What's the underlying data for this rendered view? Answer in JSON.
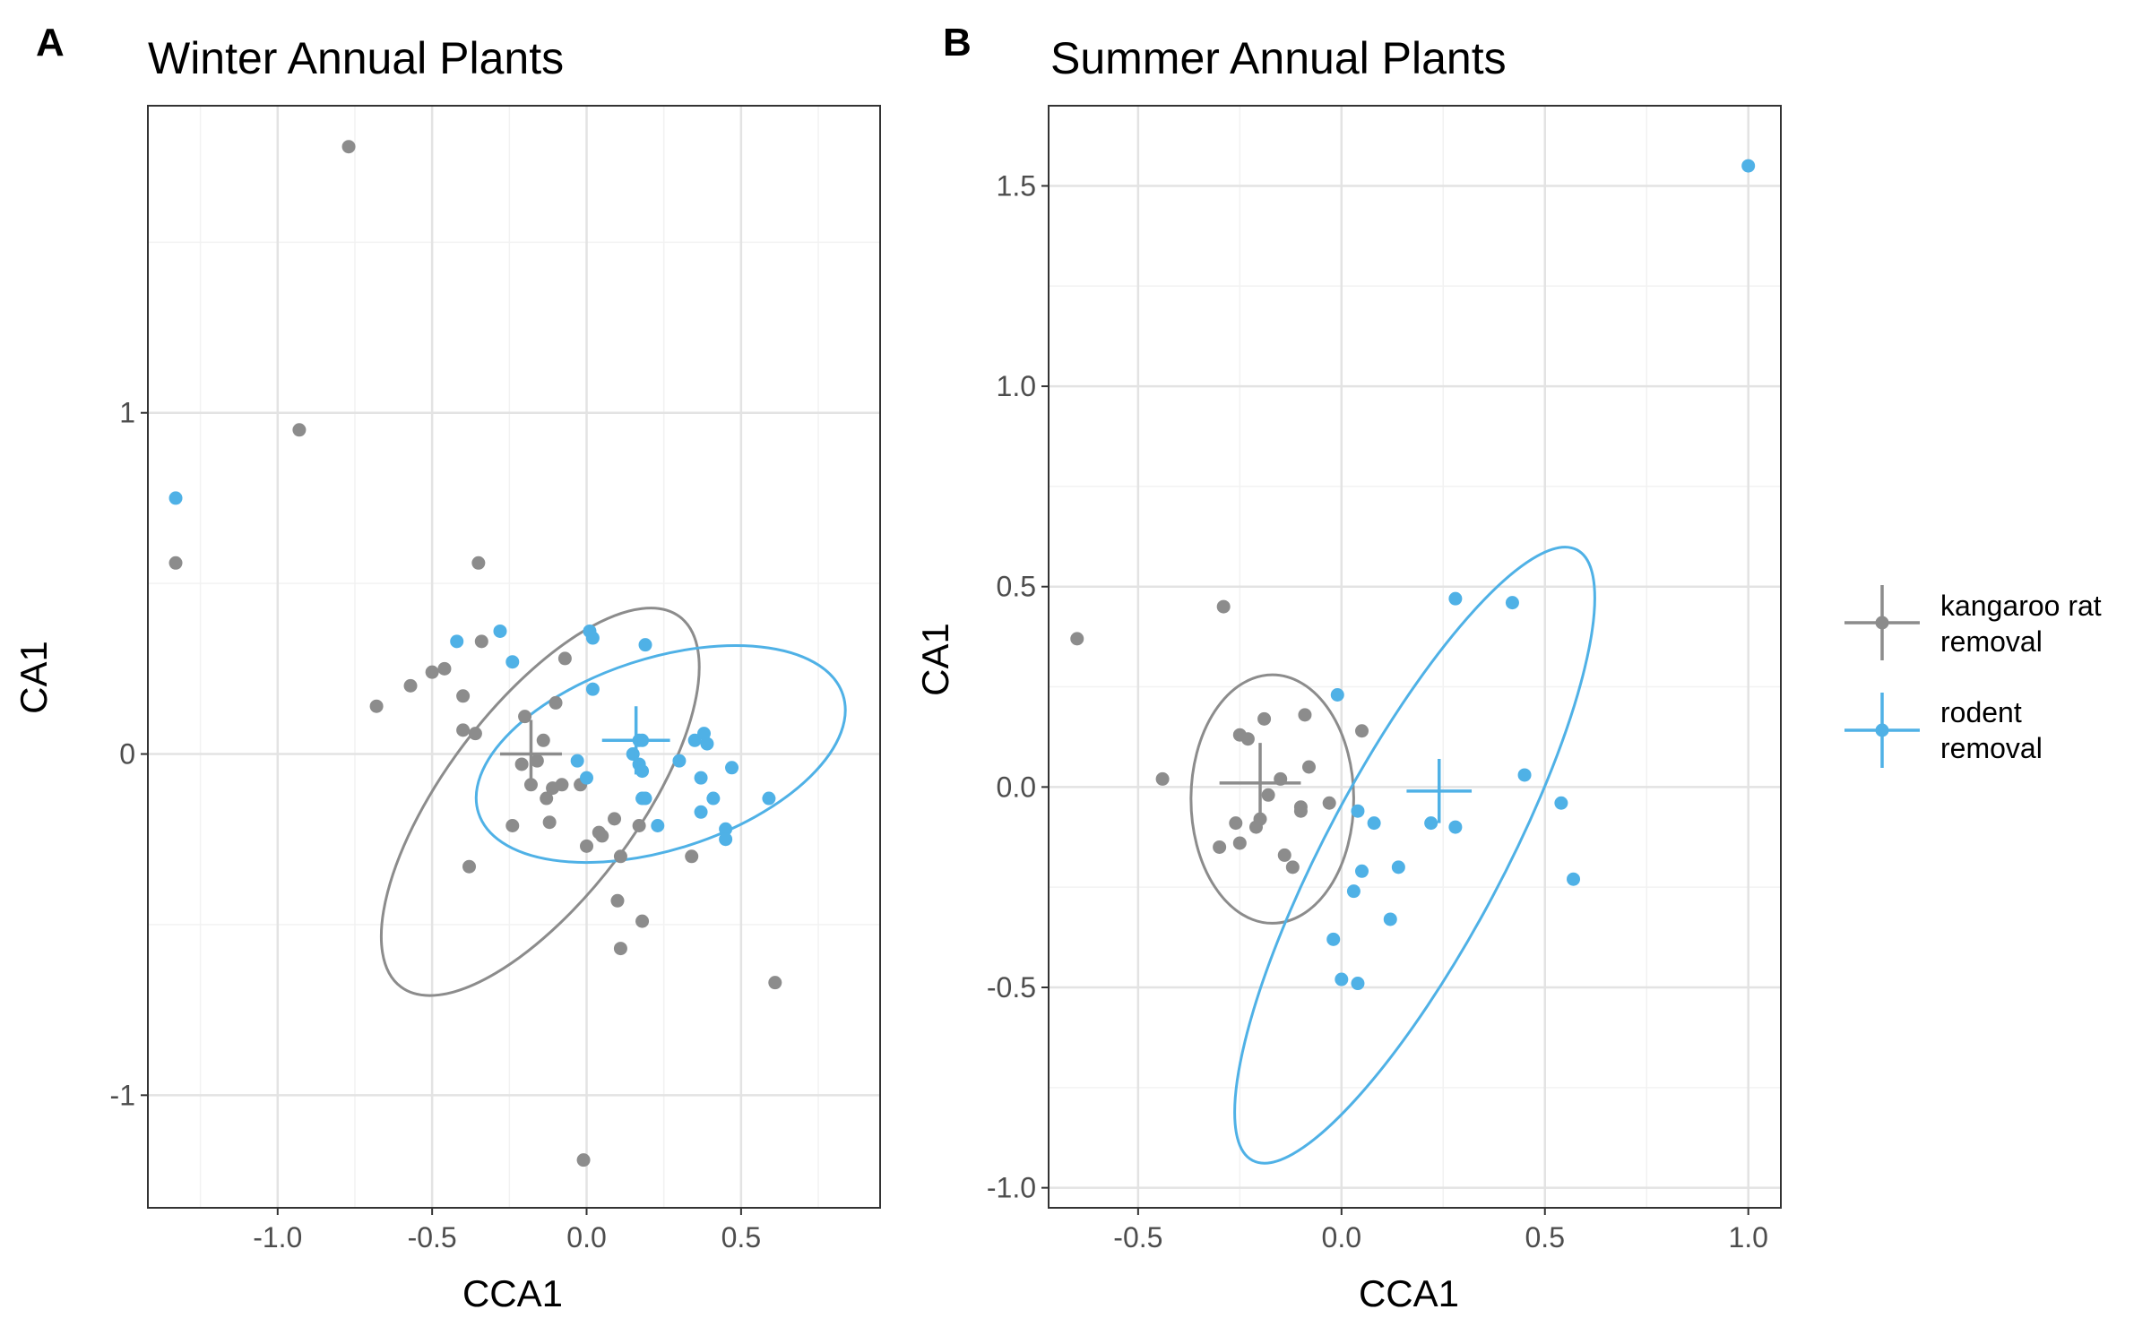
{
  "colors": {
    "kangaroo": "#8c8c8c",
    "rodent": "#4fb1e6",
    "grid_major": "#e3e3e3",
    "grid_minor": "#f2f2f2",
    "panel_border": "#333333",
    "tick_text": "#4d4d4d"
  },
  "legend": {
    "position": "right",
    "items": [
      {
        "key": "kangaroo",
        "lines": [
          "kangaroo rat",
          "removal"
        ]
      },
      {
        "key": "rodent",
        "lines": [
          "rodent",
          "removal"
        ]
      }
    ]
  },
  "chart_data": [
    {
      "type": "scatter",
      "panel_label": "A",
      "title": "Winter Annual Plants",
      "xlabel": "CCA1",
      "ylabel": "CA1",
      "xlim": [
        -1.42,
        0.95
      ],
      "ylim": [
        -1.33,
        1.9
      ],
      "xticks": [
        -1.0,
        -0.5,
        0.0,
        0.5
      ],
      "xtick_labels": [
        "-1.0",
        "-0.5",
        "0.0",
        "0.5"
      ],
      "yticks": [
        -1,
        0,
        1
      ],
      "ytick_labels": [
        "-1",
        "0",
        "1"
      ],
      "grid": true,
      "series": [
        {
          "key": "kangaroo",
          "name": "kangaroo rat removal",
          "points": [
            [
              -0.77,
              1.78
            ],
            [
              -0.93,
              0.95
            ],
            [
              -1.33,
              0.56
            ],
            [
              -0.35,
              0.56
            ],
            [
              -0.34,
              0.33
            ],
            [
              -0.57,
              0.2
            ],
            [
              -0.5,
              0.24
            ],
            [
              -0.46,
              0.25
            ],
            [
              -0.68,
              0.14
            ],
            [
              -0.4,
              0.17
            ],
            [
              -0.36,
              0.06
            ],
            [
              -0.4,
              0.07
            ],
            [
              -0.2,
              0.11
            ],
            [
              -0.1,
              0.15
            ],
            [
              -0.07,
              0.28
            ],
            [
              -0.14,
              0.04
            ],
            [
              -0.21,
              -0.03
            ],
            [
              -0.16,
              -0.02
            ],
            [
              -0.18,
              -0.09
            ],
            [
              -0.13,
              -0.13
            ],
            [
              -0.11,
              -0.1
            ],
            [
              -0.08,
              -0.09
            ],
            [
              -0.02,
              -0.09
            ],
            [
              -0.24,
              -0.21
            ],
            [
              -0.12,
              -0.2
            ],
            [
              0.0,
              -0.27
            ],
            [
              0.04,
              -0.23
            ],
            [
              0.05,
              -0.24
            ],
            [
              0.09,
              -0.19
            ],
            [
              0.11,
              -0.3
            ],
            [
              0.17,
              -0.21
            ],
            [
              0.34,
              -0.3
            ],
            [
              0.1,
              -0.43
            ],
            [
              0.18,
              -0.49
            ],
            [
              0.11,
              -0.57
            ],
            [
              -0.38,
              -0.33
            ],
            [
              0.61,
              -0.67
            ],
            [
              -0.01,
              -1.19
            ]
          ]
        },
        {
          "key": "rodent",
          "name": "rodent removal",
          "points": [
            [
              -1.33,
              0.75
            ],
            [
              -0.42,
              0.33
            ],
            [
              -0.28,
              0.36
            ],
            [
              -0.24,
              0.27
            ],
            [
              0.01,
              0.36
            ],
            [
              0.02,
              0.34
            ],
            [
              0.19,
              0.32
            ],
            [
              0.02,
              0.19
            ],
            [
              0.17,
              0.04
            ],
            [
              0.18,
              0.04
            ],
            [
              0.17,
              -0.03
            ],
            [
              0.18,
              -0.05
            ],
            [
              -0.03,
              -0.02
            ],
            [
              0.0,
              -0.07
            ],
            [
              0.15,
              0.0
            ],
            [
              0.3,
              -0.02
            ],
            [
              0.35,
              0.04
            ],
            [
              0.38,
              0.06
            ],
            [
              0.39,
              0.03
            ],
            [
              0.47,
              -0.04
            ],
            [
              0.37,
              -0.07
            ],
            [
              0.41,
              -0.13
            ],
            [
              0.59,
              -0.13
            ],
            [
              0.18,
              -0.13
            ],
            [
              0.19,
              -0.13
            ],
            [
              0.23,
              -0.21
            ],
            [
              0.37,
              -0.17
            ],
            [
              0.45,
              -0.22
            ],
            [
              0.45,
              -0.25
            ]
          ]
        }
      ],
      "centroids": [
        {
          "key": "kangaroo",
          "x": -0.18,
          "y": 0.0,
          "xerr": 0.1,
          "yerr": 0.1
        },
        {
          "key": "rodent",
          "x": 0.16,
          "y": 0.04,
          "xerr": 0.11,
          "yerr": 0.1
        }
      ],
      "ellipses": [
        {
          "key": "kangaroo",
          "cx": -0.15,
          "cy": -0.14,
          "rx": 0.75,
          "ry": 0.28,
          "angle": -53
        },
        {
          "key": "rodent",
          "cx": 0.24,
          "cy": 0.0,
          "rx": 0.62,
          "ry": 0.28,
          "angle": -18
        }
      ]
    },
    {
      "type": "scatter",
      "panel_label": "B",
      "title": "Summer Annual Plants",
      "xlabel": "CCA1",
      "ylabel": "CA1",
      "xlim": [
        -0.72,
        1.08
      ],
      "ylim": [
        -1.05,
        1.7
      ],
      "xticks": [
        -0.5,
        0.0,
        0.5,
        1.0
      ],
      "xtick_labels": [
        "-0.5",
        "0.0",
        "0.5",
        "1.0"
      ],
      "yticks": [
        -1.0,
        -0.5,
        0.0,
        0.5,
        1.0,
        1.5
      ],
      "ytick_labels": [
        "-1.0",
        "-0.5",
        "0.0",
        "0.5",
        "1.0",
        "1.5"
      ],
      "grid": true,
      "series": [
        {
          "key": "kangaroo",
          "name": "kangaroo rat removal",
          "points": [
            [
              -0.65,
              0.37
            ],
            [
              -0.29,
              0.45
            ],
            [
              -0.44,
              0.02
            ],
            [
              -0.25,
              0.13
            ],
            [
              -0.23,
              0.12
            ],
            [
              -0.19,
              0.17
            ],
            [
              -0.09,
              0.18
            ],
            [
              0.05,
              0.14
            ],
            [
              -0.26,
              -0.09
            ],
            [
              -0.21,
              -0.1
            ],
            [
              -0.3,
              -0.15
            ],
            [
              -0.25,
              -0.14
            ],
            [
              -0.2,
              -0.08
            ],
            [
              -0.18,
              -0.02
            ],
            [
              -0.15,
              0.02
            ],
            [
              -0.08,
              0.05
            ],
            [
              -0.1,
              -0.05
            ],
            [
              -0.1,
              -0.06
            ],
            [
              -0.03,
              -0.04
            ],
            [
              -0.14,
              -0.17
            ],
            [
              -0.12,
              -0.2
            ]
          ]
        },
        {
          "key": "rodent",
          "name": "rodent removal",
          "points": [
            [
              1.0,
              1.55
            ],
            [
              0.28,
              0.47
            ],
            [
              0.42,
              0.46
            ],
            [
              -0.01,
              0.23
            ],
            [
              0.45,
              0.03
            ],
            [
              0.04,
              -0.06
            ],
            [
              0.08,
              -0.09
            ],
            [
              0.22,
              -0.09
            ],
            [
              0.28,
              -0.1
            ],
            [
              0.54,
              -0.04
            ],
            [
              0.57,
              -0.23
            ],
            [
              0.05,
              -0.21
            ],
            [
              0.14,
              -0.2
            ],
            [
              0.03,
              -0.26
            ],
            [
              0.12,
              -0.33
            ],
            [
              -0.02,
              -0.38
            ],
            [
              0.0,
              -0.48
            ],
            [
              0.04,
              -0.49
            ]
          ]
        }
      ],
      "centroids": [
        {
          "key": "kangaroo",
          "x": -0.2,
          "y": 0.01,
          "xerr": 0.1,
          "yerr": 0.1
        },
        {
          "key": "rodent",
          "x": 0.24,
          "y": -0.01,
          "xerr": 0.08,
          "yerr": 0.08
        }
      ],
      "ellipses": [
        {
          "key": "kangaroo",
          "cx": -0.17,
          "cy": -0.03,
          "rx": 0.2,
          "ry": 0.31,
          "angle": 0
        },
        {
          "key": "rodent",
          "cx": 0.18,
          "cy": -0.17,
          "rx": 0.85,
          "ry": 0.22,
          "angle": -62
        }
      ]
    }
  ]
}
